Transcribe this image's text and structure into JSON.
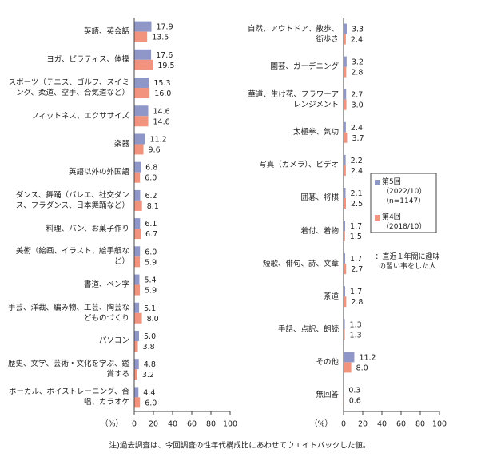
{
  "chart_data": [
    {
      "type": "bar",
      "orientation": "horizontal",
      "categories": [
        "英語、英会話",
        "ヨガ、ピラティス、体操",
        "スポーツ（テニス、ゴルフ、スイミング、柔道、空手、合気道など）",
        "フィットネス、エクササイズ",
        "楽器",
        "英語以外の外国語",
        "ダンス、舞踊（バレエ、社交ダンス、フラダンス、日本舞踊など）",
        "料理、パン、お菓子作り",
        "美術（絵画、イラスト、絵手紙など）",
        "書道、ペン字",
        "手芸、洋裁、編み物、工芸、陶芸などものづくり",
        "パソコン",
        "歴史、文学、芸術・文化を学ぶ、鑑賞する",
        "ボーカル、ボイストレーニング、合唱、カラオケ"
      ],
      "series": [
        {
          "color": "#8f97c9",
          "values": [
            17.9,
            17.6,
            15.3,
            14.6,
            11.2,
            6.8,
            6.2,
            6.1,
            6.0,
            5.4,
            5.1,
            5.0,
            4.8,
            4.4
          ],
          "value_labels": [
            "17.9",
            "17.6",
            "15.3",
            "14.6",
            "11.2",
            "6.8",
            "6.2",
            "6.1",
            "6.0",
            "5.4",
            "5.1",
            "5.0",
            "4.8",
            "4.4"
          ]
        },
        {
          "color": "#f2937d",
          "values": [
            13.5,
            19.5,
            16.0,
            14.6,
            9.6,
            6.0,
            8.1,
            6.7,
            5.9,
            5.9,
            8.0,
            3.8,
            3.2,
            6.0
          ],
          "value_labels": [
            "13.5",
            "19.5",
            "16.0",
            "14.6",
            "9.6",
            "6.0",
            "8.1",
            "6.7",
            "5.9",
            "5.9",
            "8.0",
            "3.8",
            "3.2",
            "6.0"
          ]
        }
      ],
      "xlim": [
        0,
        100
      ],
      "xticks": [
        0,
        20,
        40,
        60,
        80,
        100
      ],
      "axis_label": "（%）"
    },
    {
      "type": "bar",
      "orientation": "horizontal",
      "categories": [
        "自然、アウトドア、散歩、街歩き",
        "園芸、ガーデニング",
        "華道、生け花、フラワーアレンジメント",
        "太極拳、気功",
        "写真（カメラ）、ビデオ",
        "囲碁、将棋",
        "着付、着物",
        "短歌、俳句、詩、文章",
        "茶道",
        "手話、点訳、朗読",
        "その他",
        "無回答"
      ],
      "series": [
        {
          "name": "第5回（2022/10）（n=1147）",
          "color": "#8f97c9",
          "values": [
            3.3,
            3.2,
            2.7,
            2.4,
            2.2,
            2.1,
            1.7,
            1.7,
            1.7,
            1.3,
            11.2,
            0.3
          ],
          "value_labels": [
            "3.3",
            "3.2",
            "2.7",
            "2.4",
            "2.2",
            "2.1",
            "1.7",
            "1.7",
            "1.7",
            "1.3",
            "11.2",
            "0.3"
          ]
        },
        {
          "name": "第4回（2018/10）",
          "color": "#f2937d",
          "values": [
            2.4,
            2.8,
            3.0,
            3.7,
            2.4,
            2.5,
            1.5,
            2.7,
            2.8,
            1.3,
            8.0,
            0.6
          ],
          "value_labels": [
            "2.4",
            "2.8",
            "3.0",
            "3.7",
            "2.4",
            "2.5",
            "1.5",
            "2.7",
            "2.8",
            "1.3",
            "8.0",
            "0.6"
          ]
        }
      ],
      "xlim": [
        0,
        100
      ],
      "xticks": [
        0,
        20,
        40,
        60,
        80,
        100
      ],
      "axis_label": "（%）",
      "legend": "right",
      "annotation": "：直近１年間に趣味の習い事をした人"
    }
  ],
  "note": "注)過去調査は、今回調査の性年代構成比にあわせてウエイトバックした値。"
}
